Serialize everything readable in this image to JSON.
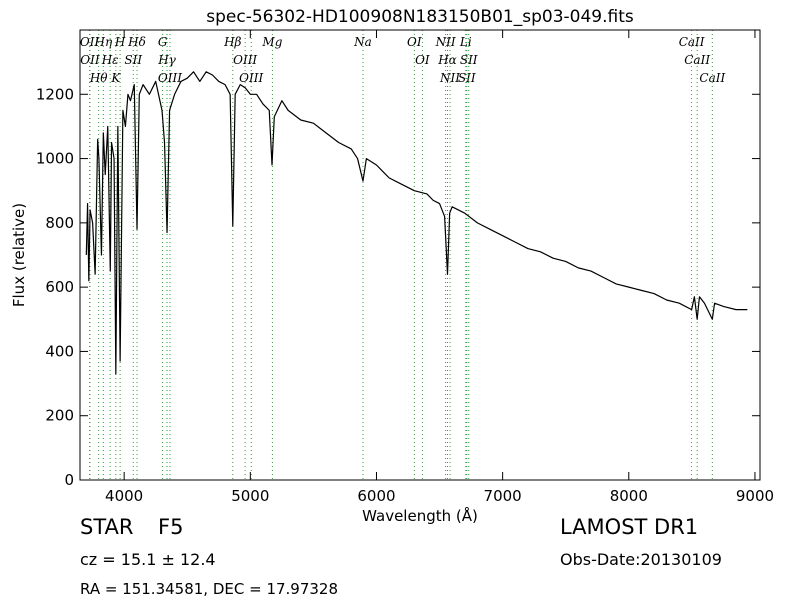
{
  "chart_data": {
    "type": "line",
    "title": "spec-56302-HD100908N183150B01_sp03-049.fits",
    "x_label": "Wavelength (Å)",
    "y_label": "Flux (relative)",
    "xlim": [
      3650,
      9040
    ],
    "ylim": [
      0,
      1400
    ],
    "xticks": [
      4000,
      5000,
      6000,
      7000,
      8000,
      9000
    ],
    "yticks": [
      0,
      200,
      400,
      600,
      800,
      1000,
      1200
    ],
    "color": "#000000",
    "line_color": "#2ca02c",
    "x": [
      3700,
      3710,
      3720,
      3730,
      3750,
      3770,
      3790,
      3800,
      3820,
      3835,
      3850,
      3870,
      3890,
      3900,
      3920,
      3934,
      3950,
      3968,
      3990,
      4010,
      4030,
      4050,
      4080,
      4102,
      4120,
      4150,
      4200,
      4250,
      4300,
      4320,
      4340,
      4360,
      4400,
      4450,
      4500,
      4550,
      4600,
      4650,
      4700,
      4750,
      4800,
      4840,
      4861,
      4880,
      4920,
      4960,
      5000,
      5050,
      5100,
      5150,
      5172,
      5190,
      5250,
      5300,
      5400,
      5500,
      5600,
      5700,
      5800,
      5850,
      5893,
      5920,
      6000,
      6100,
      6200,
      6300,
      6400,
      6450,
      6500,
      6540,
      6563,
      6580,
      6600,
      6700,
      6800,
      6900,
      7000,
      7100,
      7200,
      7300,
      7400,
      7500,
      7600,
      7700,
      7800,
      7900,
      8000,
      8100,
      8200,
      8300,
      8400,
      8498,
      8520,
      8542,
      8560,
      8600,
      8662,
      8680,
      8750,
      8850,
      8940
    ],
    "values": [
      700,
      860,
      620,
      840,
      800,
      640,
      1060,
      1000,
      700,
      1080,
      950,
      1100,
      650,
      1050,
      1000,
      330,
      1100,
      370,
      1150,
      1100,
      1200,
      1180,
      1230,
      780,
      1200,
      1230,
      1200,
      1240,
      1150,
      1050,
      770,
      1150,
      1200,
      1240,
      1250,
      1270,
      1240,
      1270,
      1260,
      1240,
      1230,
      1200,
      790,
      1200,
      1230,
      1220,
      1200,
      1200,
      1170,
      1150,
      980,
      1130,
      1180,
      1150,
      1120,
      1110,
      1080,
      1050,
      1030,
      1000,
      930,
      1000,
      980,
      940,
      920,
      900,
      890,
      870,
      860,
      820,
      640,
      830,
      850,
      830,
      800,
      780,
      760,
      740,
      720,
      710,
      690,
      680,
      660,
      650,
      630,
      610,
      600,
      590,
      580,
      560,
      550,
      530,
      570,
      500,
      570,
      550,
      500,
      550,
      540,
      530,
      530
    ],
    "lines": [
      {
        "label": "OII",
        "wavelength": 3726
      },
      {
        "label": "OII",
        "wavelength": 3729
      },
      {
        "label": "Hθ",
        "wavelength": 3798
      },
      {
        "label": "Hη",
        "wavelength": 3835
      },
      {
        "label": "Hε",
        "wavelength": 3889
      },
      {
        "label": "K",
        "wavelength": 3934
      },
      {
        "label": "H",
        "wavelength": 3968
      },
      {
        "label": "SII",
        "wavelength": 4072
      },
      {
        "label": "Hδ",
        "wavelength": 4102
      },
      {
        "label": "G",
        "wavelength": 4305
      },
      {
        "label": "Hγ",
        "wavelength": 4340
      },
      {
        "label": "OIII",
        "wavelength": 4363
      },
      {
        "label": "Hβ",
        "wavelength": 4861
      },
      {
        "label": "OIII",
        "wavelength": 4959
      },
      {
        "label": "OIII",
        "wavelength": 5007
      },
      {
        "label": "Mg",
        "wavelength": 5175
      },
      {
        "label": "Na",
        "wavelength": 5893
      },
      {
        "label": "OI",
        "wavelength": 6300
      },
      {
        "label": "OI",
        "wavelength": 6364
      },
      {
        "label": "NII",
        "wavelength": 6548
      },
      {
        "label": "Hα",
        "wavelength": 6563
      },
      {
        "label": "NII",
        "wavelength": 6583
      },
      {
        "label": "Li",
        "wavelength": 6708
      },
      {
        "label": "SII",
        "wavelength": 6716
      },
      {
        "label": "SII",
        "wavelength": 6731
      },
      {
        "label": "CaII",
        "wavelength": 8498
      },
      {
        "label": "CaII",
        "wavelength": 8542
      },
      {
        "label": "CaII",
        "wavelength": 8662
      }
    ],
    "object_class": "STAR",
    "subclass": "F5",
    "redshift_text": "cz = 15.1 ± 12.4",
    "coords": "RA = 151.34581, DEC = 17.97328",
    "survey": "LAMOST DR1",
    "obs_date": "Obs-Date:20130109"
  }
}
